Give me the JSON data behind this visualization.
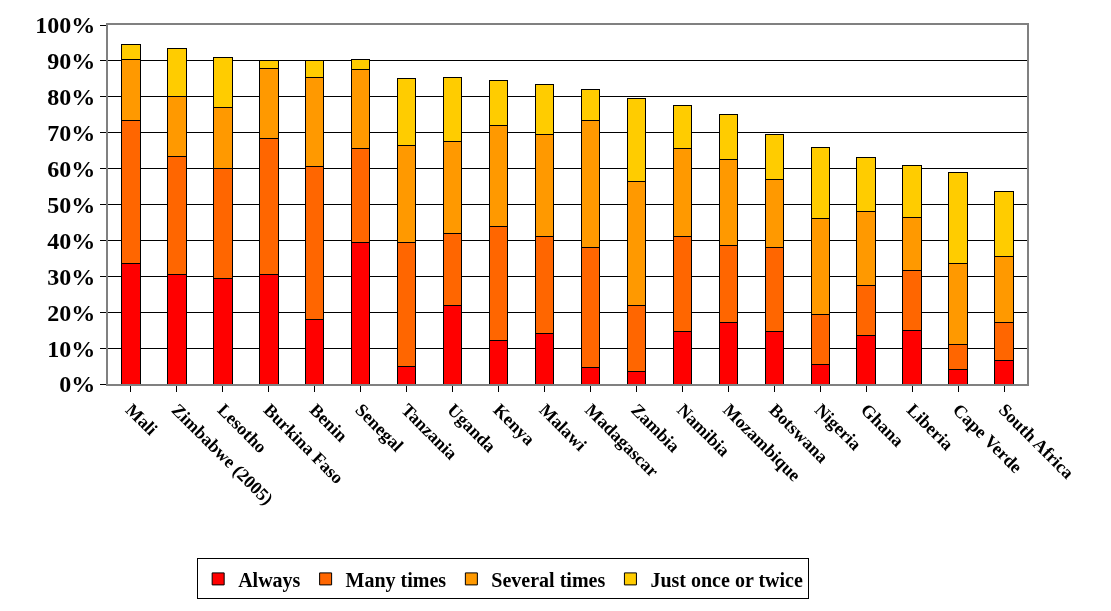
{
  "chart_data": {
    "type": "bar",
    "stacked": true,
    "categories": [
      "Mali",
      "Zimbabwe (2005)",
      "Lesotho",
      "Burkina Faso",
      "Benin",
      "Senegal",
      "Tanzania",
      "Uganda",
      "Kenya",
      "Malawi",
      "Madagascar",
      "Zambia",
      "Namibia",
      "Mozambique",
      "Botswana",
      "Nigeria",
      "Ghana",
      "Liberia",
      "Cape Verde",
      "South Africa"
    ],
    "series": [
      {
        "name": "Always",
        "color": "#ff0000",
        "values": [
          33.5,
          30.5,
          29.5,
          30.5,
          18,
          39.5,
          5,
          22,
          12,
          14,
          4.5,
          3.5,
          14.5,
          17,
          14.5,
          5.5,
          13.5,
          15,
          4,
          6.5
        ]
      },
      {
        "name": "Many times",
        "color": "#ff6600",
        "values": [
          40,
          33,
          30.5,
          38,
          42.5,
          26,
          34.5,
          20,
          32,
          27,
          33.5,
          18.5,
          26.5,
          21.5,
          23.5,
          14,
          14,
          16.5,
          7,
          10.5
        ]
      },
      {
        "name": "Several times",
        "color": "#ff9900",
        "values": [
          17,
          16.5,
          17,
          19.5,
          25,
          22,
          27,
          25.5,
          28,
          28.5,
          35.5,
          34.5,
          24.5,
          24,
          19,
          26.5,
          20.5,
          15,
          22.5,
          18.5
        ]
      },
      {
        "name": "Just once or twice",
        "color": "#ffcc00",
        "values": [
          4,
          13.5,
          14,
          2,
          4.5,
          3,
          18.5,
          18,
          12.5,
          14,
          8.5,
          23,
          12,
          12.5,
          12.5,
          20,
          15,
          14.5,
          25.5,
          18
        ]
      }
    ],
    "ylim": [
      0,
      100
    ],
    "yticks": [
      {
        "value": 0,
        "label": "0%"
      },
      {
        "value": 10,
        "label": "10%"
      },
      {
        "value": 20,
        "label": "20%"
      },
      {
        "value": 30,
        "label": "30%"
      },
      {
        "value": 40,
        "label": "40%"
      },
      {
        "value": 50,
        "label": "50%"
      },
      {
        "value": 60,
        "label": "60%"
      },
      {
        "value": 70,
        "label": "70%"
      },
      {
        "value": 80,
        "label": "80%"
      },
      {
        "value": 90,
        "label": "90%"
      },
      {
        "value": 100,
        "label": "100%"
      }
    ],
    "grid": "y",
    "legend": "bottom"
  }
}
